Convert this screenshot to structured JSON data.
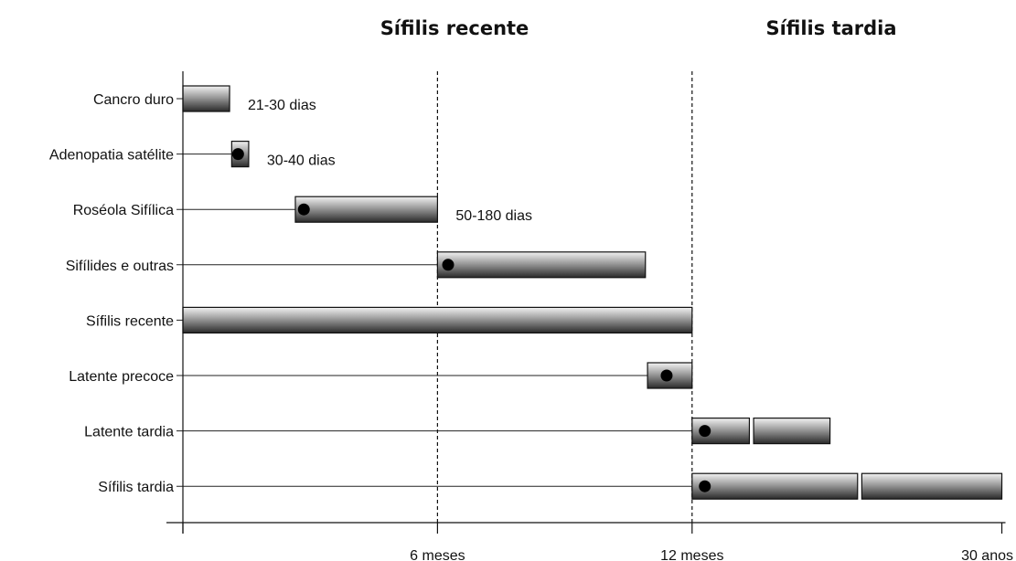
{
  "phase_titles": [
    {
      "key": "recent",
      "label": "Sífilis recente"
    },
    {
      "key": "late",
      "label": "Sífilis tardia"
    }
  ],
  "axis": {
    "ticks": [
      {
        "label": "",
        "pos": 0
      },
      {
        "label": "6 meses",
        "pos": 6
      },
      {
        "label": "12 meses",
        "pos": 12
      },
      {
        "label": "30 anos",
        "pos": 19.3
      }
    ],
    "dividers": [
      6,
      12
    ]
  },
  "rows": [
    {
      "label": "Cancro duro",
      "segments": [
        {
          "start": 0,
          "end": 1.1
        }
      ],
      "dot": null,
      "range_label": "21-30 dias"
    },
    {
      "label": "Adenopatia satélite",
      "segments": [
        {
          "start": 1.15,
          "end": 1.55
        }
      ],
      "dot": 1.3,
      "range_label": "30-40 dias"
    },
    {
      "label": "Roséola Sifílica",
      "segments": [
        {
          "start": 2.65,
          "end": 6
        }
      ],
      "dot": 2.85,
      "range_label": "50-180 dias"
    },
    {
      "label": "Sifílides e outras",
      "segments": [
        {
          "start": 6,
          "end": 10.9
        }
      ],
      "dot": 6.25,
      "range_label": ""
    },
    {
      "label": "Sífilis recente",
      "segments": [
        {
          "start": 0,
          "end": 12
        }
      ],
      "dot": null,
      "range_label": ""
    },
    {
      "label": "Latente precoce",
      "segments": [
        {
          "start": 10.95,
          "end": 12
        }
      ],
      "dot": 11.4,
      "range_label": ""
    },
    {
      "label": "Latente tardia",
      "segments": [
        {
          "start": 12,
          "end": 13.35
        },
        {
          "start": 13.45,
          "end": 15.25
        }
      ],
      "dot": 12.3,
      "range_label": ""
    },
    {
      "label": "Sífilis tardia",
      "segments": [
        {
          "start": 12,
          "end": 15.9
        },
        {
          "start": 16,
          "end": 19.3
        }
      ],
      "dot": 12.3,
      "range_label": ""
    }
  ]
}
